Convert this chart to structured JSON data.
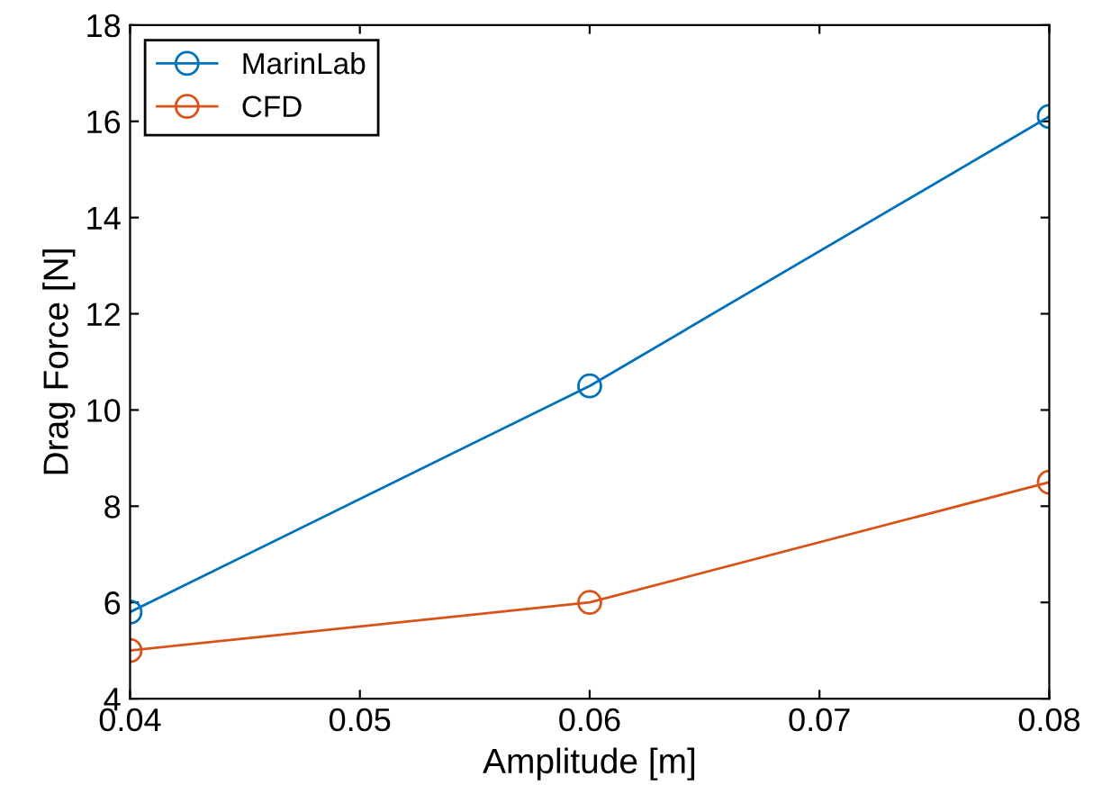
{
  "chart_data": {
    "type": "line",
    "xlabel": "Amplitude [m]",
    "ylabel": "Drag Force [N]",
    "x": [
      0.04,
      0.06,
      0.08
    ],
    "series": [
      {
        "name": "MarinLab",
        "color": "#0072bd",
        "values": [
          5.8,
          10.5,
          16.1
        ]
      },
      {
        "name": "CFD",
        "color": "#d95319",
        "values": [
          5.0,
          6.0,
          8.5
        ]
      }
    ],
    "xlim": [
      0.04,
      0.08
    ],
    "xticks": [
      0.04,
      0.05,
      0.06,
      0.07,
      0.08
    ],
    "ylim": [
      4,
      18
    ],
    "yticks": [
      4,
      6,
      8,
      10,
      12,
      14,
      16,
      18
    ],
    "grid": false,
    "legend": "top left",
    "marker": "circle",
    "line_style": "solid"
  }
}
